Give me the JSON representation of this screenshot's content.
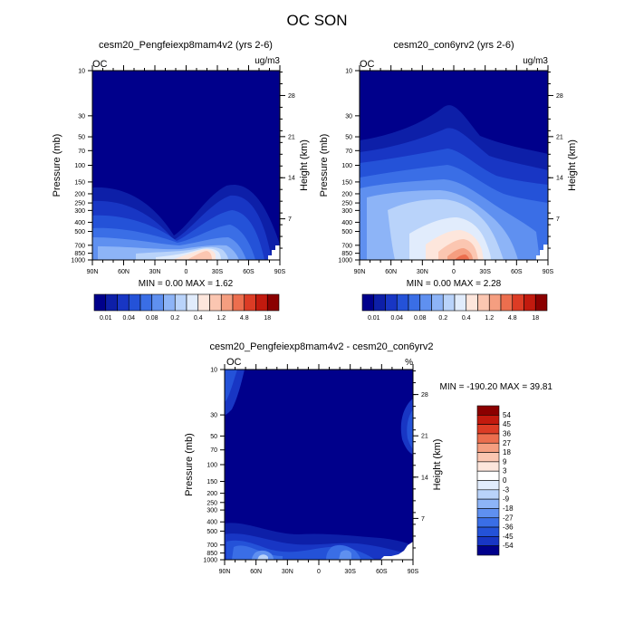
{
  "chart_data": {
    "type": "contour",
    "title": "OC SON",
    "y_pressure_ticks": [
      "10",
      "30",
      "50",
      "70",
      "100",
      "150",
      "200",
      "250",
      "300",
      "400",
      "500",
      "700",
      "850",
      "1000"
    ],
    "y_pressure_values": [
      10,
      30,
      50,
      70,
      100,
      150,
      200,
      250,
      300,
      400,
      500,
      700,
      850,
      1000
    ],
    "y_height_ticks": [
      "28",
      "21",
      "14",
      "7"
    ],
    "y_height_values": [
      28,
      21,
      14,
      7
    ],
    "x_ticks": [
      "90N",
      "60N",
      "30N",
      "0",
      "30S",
      "60S",
      "90S"
    ],
    "x_values": [
      90,
      60,
      30,
      0,
      -30,
      -60,
      -90
    ],
    "ylabel": "Pressure (mb)",
    "ylabel_right": "Height (km)",
    "panels": [
      {
        "id": "exp",
        "subtitle": "cesm20_Pengfeiexp8mam4v2 (yrs 2-6)",
        "left_label": "OC",
        "right_label": "ug/m3",
        "stats": "MIN =   0.00   MAX =   1.62",
        "min": 0.0,
        "max": 1.62
      },
      {
        "id": "ctl",
        "subtitle": "cesm20_con6yrv2 (yrs 2-6)",
        "left_label": "OC",
        "right_label": "ug/m3",
        "stats": "MIN =   0.00   MAX =   2.28",
        "min": 0.0,
        "max": 2.28
      },
      {
        "id": "diff",
        "subtitle": "cesm20_Pengfeiexp8mam4v2 - cesm20_con6yrv2",
        "left_label": "OC",
        "right_label": "%",
        "stats": "MIN = -190.20  MAX =  39.81",
        "min": -190.2,
        "max": 39.81
      }
    ],
    "colorbar_abs": {
      "labels": [
        "0.01",
        "0.04",
        "0.08",
        "0.2",
        "0.4",
        "1.2",
        "4.8",
        "18"
      ],
      "colors": [
        "#00008b",
        "#0d1fa8",
        "#1836c4",
        "#2452d8",
        "#3a6ee6",
        "#5f90f0",
        "#8db4f7",
        "#b9d3fa",
        "#e1ecfc",
        "#fde6dc",
        "#fbc6b1",
        "#f59e80",
        "#ec6e4e",
        "#dc3c25",
        "#c21a0e",
        "#8b0000"
      ]
    },
    "colorbar_diff": {
      "labels": [
        "54",
        "45",
        "36",
        "27",
        "18",
        "9",
        "3",
        "0",
        "-3",
        "-9",
        "-18",
        "-27",
        "-36",
        "-45",
        "-54"
      ],
      "colors": [
        "#8b0000",
        "#c21a0e",
        "#dc3c25",
        "#ec6e4e",
        "#f59e80",
        "#fbc6b1",
        "#fde6dc",
        "#ffffff",
        "#e1ecfc",
        "#b9d3fa",
        "#8db4f7",
        "#5f90f0",
        "#3a6ee6",
        "#2452d8",
        "#1836c4",
        "#00008b"
      ]
    }
  }
}
